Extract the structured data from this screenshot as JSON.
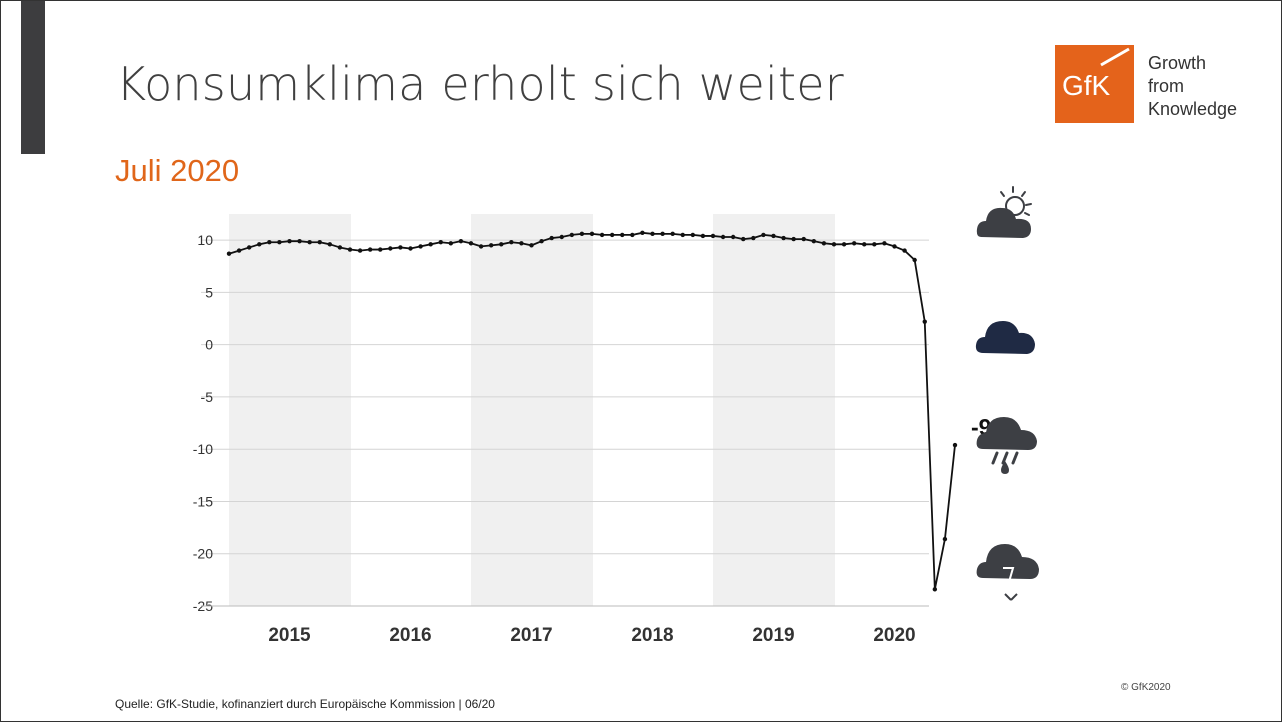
{
  "title": "Konsumklima erholt sich weiter",
  "subtitle": "Juli 2020",
  "logo": {
    "mark_text": "GfK",
    "tagline": [
      "Growth",
      "from",
      "Knowledge"
    ],
    "color": "#e4631b"
  },
  "source_text": "Quelle: GfK-Studie, kofinanziert durch Europäische Kommission | 06/20",
  "copyright": "© GfK2020",
  "weather_icons": [
    {
      "name": "sun-cloud-icon",
      "color": "#3d3f44"
    },
    {
      "name": "cloud-icon",
      "color": "#1f2a44"
    },
    {
      "name": "rain-cloud-icon",
      "color": "#3d3f44"
    },
    {
      "name": "storm-cloud-icon",
      "color": "#3d3f44"
    }
  ],
  "chart_data": {
    "type": "line",
    "title": "",
    "xlabel": "",
    "ylabel": "",
    "ylim": [
      -25,
      12.5
    ],
    "yticks": [
      10,
      5,
      0,
      -5,
      -10,
      -15,
      -20,
      -25
    ],
    "ytick_labels": [
      "10",
      "5",
      "0",
      "-5",
      "-10",
      "-15",
      "-20",
      "-25"
    ],
    "year_labels": [
      "2015",
      "2016",
      "2017",
      "2018",
      "2019",
      "2020"
    ],
    "shaded_years": [
      "2015",
      "2017",
      "2019"
    ],
    "grid": true,
    "line_color": "#111111",
    "shade_color": "#f0f0f0",
    "annotation": {
      "text": "-9,6",
      "value": -9.6
    },
    "series": [
      {
        "values": [
          8.7,
          9.0,
          9.3,
          9.6,
          9.8,
          9.8,
          9.9,
          9.9,
          9.8,
          9.8,
          9.6,
          9.3,
          9.1,
          9.0,
          9.1,
          9.1,
          9.2,
          9.3,
          9.2,
          9.4,
          9.6,
          9.8,
          9.7,
          9.9,
          9.7,
          9.4,
          9.5,
          9.6,
          9.8,
          9.7,
          9.5,
          9.9,
          10.2,
          10.3,
          10.5,
          10.6,
          10.6,
          10.5,
          10.5,
          10.5,
          10.5,
          10.7,
          10.6,
          10.6,
          10.6,
          10.5,
          10.5,
          10.4,
          10.4,
          10.3,
          10.3,
          10.1,
          10.2,
          10.5,
          10.4,
          10.2,
          10.1,
          10.1,
          9.9,
          9.7,
          9.6,
          9.6,
          9.7,
          9.6,
          9.6,
          9.7,
          9.4,
          9.0,
          8.1,
          2.2,
          -23.4,
          -18.6,
          -9.6
        ]
      }
    ]
  }
}
